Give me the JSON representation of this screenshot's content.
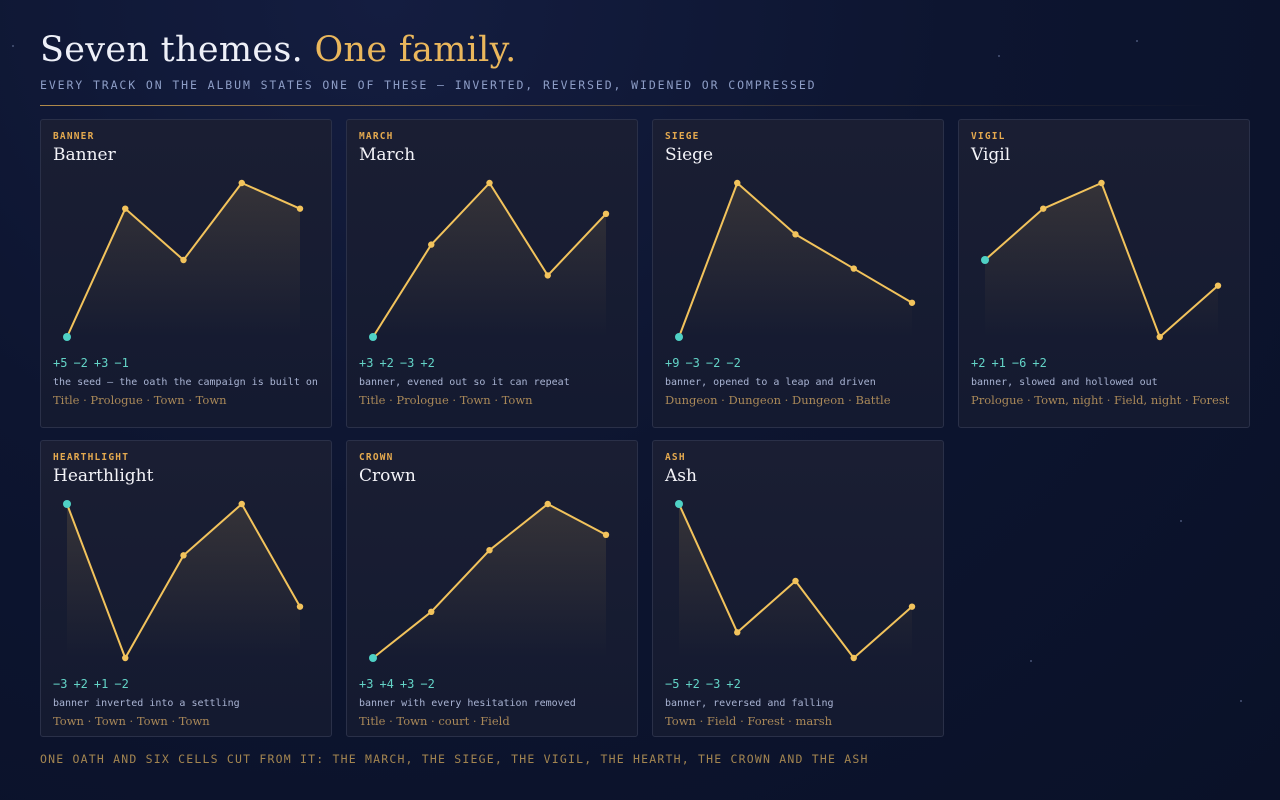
{
  "header": {
    "title": "Seven themes.",
    "title_accent": "One family.",
    "subtitle": "EVERY TRACK ON THE ALBUM STATES ONE OF THESE — INVERTED, REVERSED, WIDENED OR COMPRESSED"
  },
  "chart_data": [
    {
      "type": "line",
      "kicker": "BANNER",
      "title": "Banner",
      "steps": [
        "+5",
        "−2",
        "+3",
        "−1"
      ],
      "caption": "the seed — the oath the campaign is built on",
      "places": "Title · Prologue · Town · Town",
      "values": [
        0,
        5,
        3,
        6,
        5
      ],
      "ylim": [
        0,
        6
      ],
      "color": "#f2c35c",
      "start_color": "#4fd1c5"
    },
    {
      "type": "line",
      "kicker": "MARCH",
      "title": "March",
      "steps": [
        "+3",
        "+2",
        "−3",
        "+2"
      ],
      "caption": "banner, evened out so it can repeat",
      "places": "Title · Prologue · Town · Town",
      "values": [
        0,
        3,
        5,
        2,
        4
      ],
      "ylim": [
        0,
        5
      ],
      "color": "#f2c35c",
      "start_color": "#4fd1c5"
    },
    {
      "type": "line",
      "kicker": "SIEGE",
      "title": "Siege",
      "steps": [
        "+9",
        "−3",
        "−2",
        "−2"
      ],
      "caption": "banner, opened to a leap and driven",
      "places": "Dungeon · Dungeon · Dungeon · Battle",
      "values": [
        0,
        9,
        6,
        4,
        2
      ],
      "ylim": [
        0,
        9
      ],
      "color": "#f2c35c",
      "start_color": "#4fd1c5"
    },
    {
      "type": "line",
      "kicker": "VIGIL",
      "title": "Vigil",
      "steps": [
        "+2",
        "+1",
        "−6",
        "+2"
      ],
      "caption": "banner, slowed and hollowed out",
      "places": "Prologue · Town, night · Field, night · Forest",
      "values": [
        0,
        2,
        3,
        -3,
        -1
      ],
      "ylim": [
        -3,
        3
      ],
      "color": "#f2c35c",
      "start_color": "#4fd1c5"
    },
    {
      "type": "line",
      "kicker": "HEARTHLIGHT",
      "title": "Hearthlight",
      "steps": [
        "−3",
        "+2",
        "+1",
        "−2"
      ],
      "caption": "banner inverted into a settling",
      "places": "Town · Town · Town · Town",
      "values": [
        0,
        -3,
        -1,
        0,
        -2
      ],
      "ylim": [
        -3,
        0
      ],
      "color": "#f2c35c",
      "start_color": "#4fd1c5"
    },
    {
      "type": "line",
      "kicker": "CROWN",
      "title": "Crown",
      "steps": [
        "+3",
        "+4",
        "+3",
        "−2"
      ],
      "caption": "banner with every hesitation removed",
      "places": "Title · Town · court · Field",
      "values": [
        0,
        3,
        7,
        10,
        8
      ],
      "ylim": [
        0,
        10
      ],
      "color": "#f2c35c",
      "start_color": "#4fd1c5"
    },
    {
      "type": "line",
      "kicker": "ASH",
      "title": "Ash",
      "steps": [
        "−5",
        "+2",
        "−3",
        "+2"
      ],
      "caption": "banner, reversed and falling",
      "places": "Town · Field · Forest · marsh",
      "values": [
        0,
        -5,
        -3,
        -6,
        -4
      ],
      "ylim": [
        -6,
        0
      ],
      "color": "#f2c35c",
      "start_color": "#4fd1c5"
    }
  ],
  "footer": "ONE OATH AND SIX CELLS CUT FROM IT: THE MARCH, THE SIEGE, THE VIGIL, THE HEARTH, THE CROWN AND THE ASH"
}
